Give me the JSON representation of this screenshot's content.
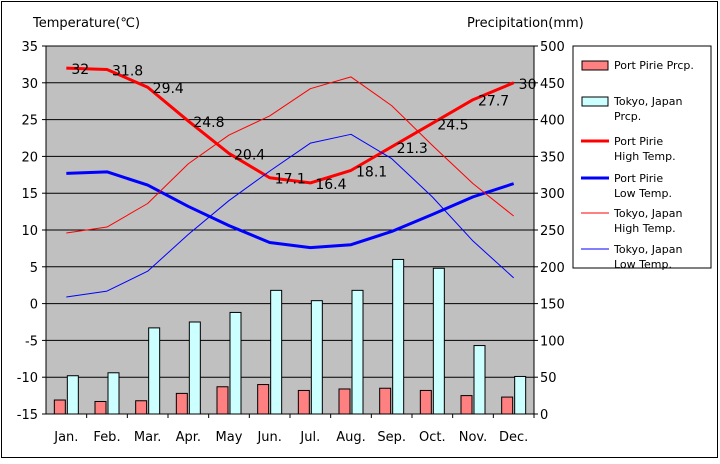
{
  "chart_data": {
    "type": "bar+line",
    "categories": [
      "Jan.",
      "Feb.",
      "Mar.",
      "Apr.",
      "May",
      "Jun.",
      "Jul.",
      "Aug.",
      "Sep.",
      "Oct.",
      "Nov.",
      "Dec."
    ],
    "y_left": {
      "label": "Temperature(℃)",
      "range": [
        -15,
        35
      ],
      "ticks": [
        35,
        30,
        25,
        20,
        15,
        10,
        5,
        0,
        -5,
        -10,
        -15
      ]
    },
    "y_right": {
      "label": "Precipitation(mm)",
      "range": [
        0,
        500
      ],
      "ticks": [
        500,
        450,
        400,
        350,
        300,
        250,
        200,
        150,
        100,
        50,
        0
      ]
    },
    "bars": [
      {
        "name": "Port Pirie Prcp.",
        "color": "#ff8080",
        "values": [
          19,
          17,
          18,
          28,
          37,
          40,
          32,
          34,
          35,
          32,
          25,
          23
        ]
      },
      {
        "name": "Tokyo, Japan Prcp.",
        "color": "#ccffff",
        "values": [
          52,
          56,
          117,
          125,
          138,
          168,
          154,
          168,
          210,
          198,
          93,
          51
        ]
      }
    ],
    "lines": [
      {
        "name": "Port Pirie High Temp.",
        "color": "#ff0000",
        "width": 3,
        "values": [
          32,
          31.8,
          29.4,
          24.8,
          20.4,
          17.1,
          16.4,
          18.1,
          21.3,
          24.5,
          27.7,
          30
        ],
        "labels": [
          "32",
          "31.8",
          "29.4",
          "24.8",
          "20.4",
          "17.1",
          "16.4",
          "18.1",
          "21.3",
          "24.5",
          "27.7",
          "30"
        ]
      },
      {
        "name": "Port Pirie Low Temp.",
        "color": "#0000ff",
        "width": 3,
        "values": [
          17.7,
          17.9,
          16.1,
          13.2,
          10.6,
          8.3,
          7.6,
          8.0,
          9.8,
          12.1,
          14.5,
          16.3
        ]
      },
      {
        "name": "Tokyo, Japan High Temp.",
        "color": "#ff0000",
        "width": 1,
        "values": [
          9.6,
          10.4,
          13.6,
          19.0,
          22.9,
          25.5,
          29.2,
          30.8,
          26.9,
          21.5,
          16.3,
          11.9
        ]
      },
      {
        "name": "Tokyo, Japan Low Temp.",
        "color": "#0000ff",
        "width": 1,
        "values": [
          0.9,
          1.7,
          4.4,
          9.4,
          14.0,
          18.0,
          21.8,
          23.0,
          19.7,
          14.5,
          8.5,
          3.5
        ]
      }
    ],
    "legend": {
      "placement": "right",
      "entries": [
        {
          "key": "bar0",
          "lines": [
            "Port Pirie Prcp."
          ]
        },
        {
          "key": "bar1",
          "lines": [
            "Tokyo, Japan",
            "Prcp."
          ]
        },
        {
          "key": "line0",
          "lines": [
            "Port Pirie",
            "High Temp."
          ]
        },
        {
          "key": "line1",
          "lines": [
            "Port Pirie",
            "Low Temp."
          ]
        },
        {
          "key": "line2",
          "lines": [
            "Tokyo, Japan",
            "High Temp."
          ]
        },
        {
          "key": "line3",
          "lines": [
            "Tokyo, Japan",
            "Low Temp."
          ]
        }
      ]
    },
    "plot_background": "#c0c0c0",
    "grid": true
  }
}
